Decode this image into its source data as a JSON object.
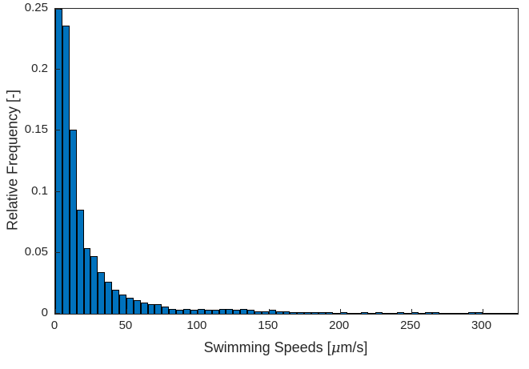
{
  "figure": {
    "background": "#ffffff",
    "axes_color": "#262626",
    "bar_face_color": "#0072BD",
    "bar_edge_color": "#000000"
  },
  "chart_data": {
    "type": "bar",
    "subtype": "histogram",
    "title": "",
    "xlabel_prefix": "Swimming Speeds [",
    "xlabel_mu": "μ",
    "xlabel_suffix": "m/s]",
    "ylabel": "Relative Frequency [-]",
    "xlim": [
      0,
      325
    ],
    "ylim": [
      0,
      0.25
    ],
    "grid": false,
    "legend": false,
    "bin_start": 0,
    "bin_width": 5,
    "x_ticks": [
      0,
      50,
      100,
      150,
      200,
      250,
      300
    ],
    "x_tick_labels": [
      "0",
      "50",
      "100",
      "150",
      "200",
      "250",
      "300"
    ],
    "y_ticks": [
      0,
      0.05,
      0.1,
      0.15,
      0.2,
      0.25
    ],
    "y_tick_labels": [
      "0",
      "0.05",
      "0.1",
      "0.15",
      "0.2",
      "0.25"
    ],
    "values": [
      0.25,
      0.236,
      0.151,
      0.085,
      0.054,
      0.047,
      0.034,
      0.026,
      0.02,
      0.016,
      0.013,
      0.011,
      0.009,
      0.008,
      0.008,
      0.006,
      0.004,
      0.003,
      0.004,
      0.003,
      0.004,
      0.003,
      0.003,
      0.004,
      0.004,
      0.003,
      0.004,
      0.003,
      0.002,
      0.002,
      0.003,
      0.002,
      0.002,
      0.001,
      0.001,
      0.001,
      0.001,
      0.001,
      0.001,
      0.0005,
      0.001,
      0.0005,
      0.0005,
      0.001,
      0.0005,
      0.001,
      0.0005,
      0.0005,
      0.001,
      0.0005,
      0.001,
      0.0005,
      0.001,
      0.001,
      0.0005,
      0.0005,
      0.0005,
      0.0005,
      0.001,
      0.001,
      0.0005,
      0.0005,
      0.0003,
      0.0005,
      0.0003
    ]
  }
}
